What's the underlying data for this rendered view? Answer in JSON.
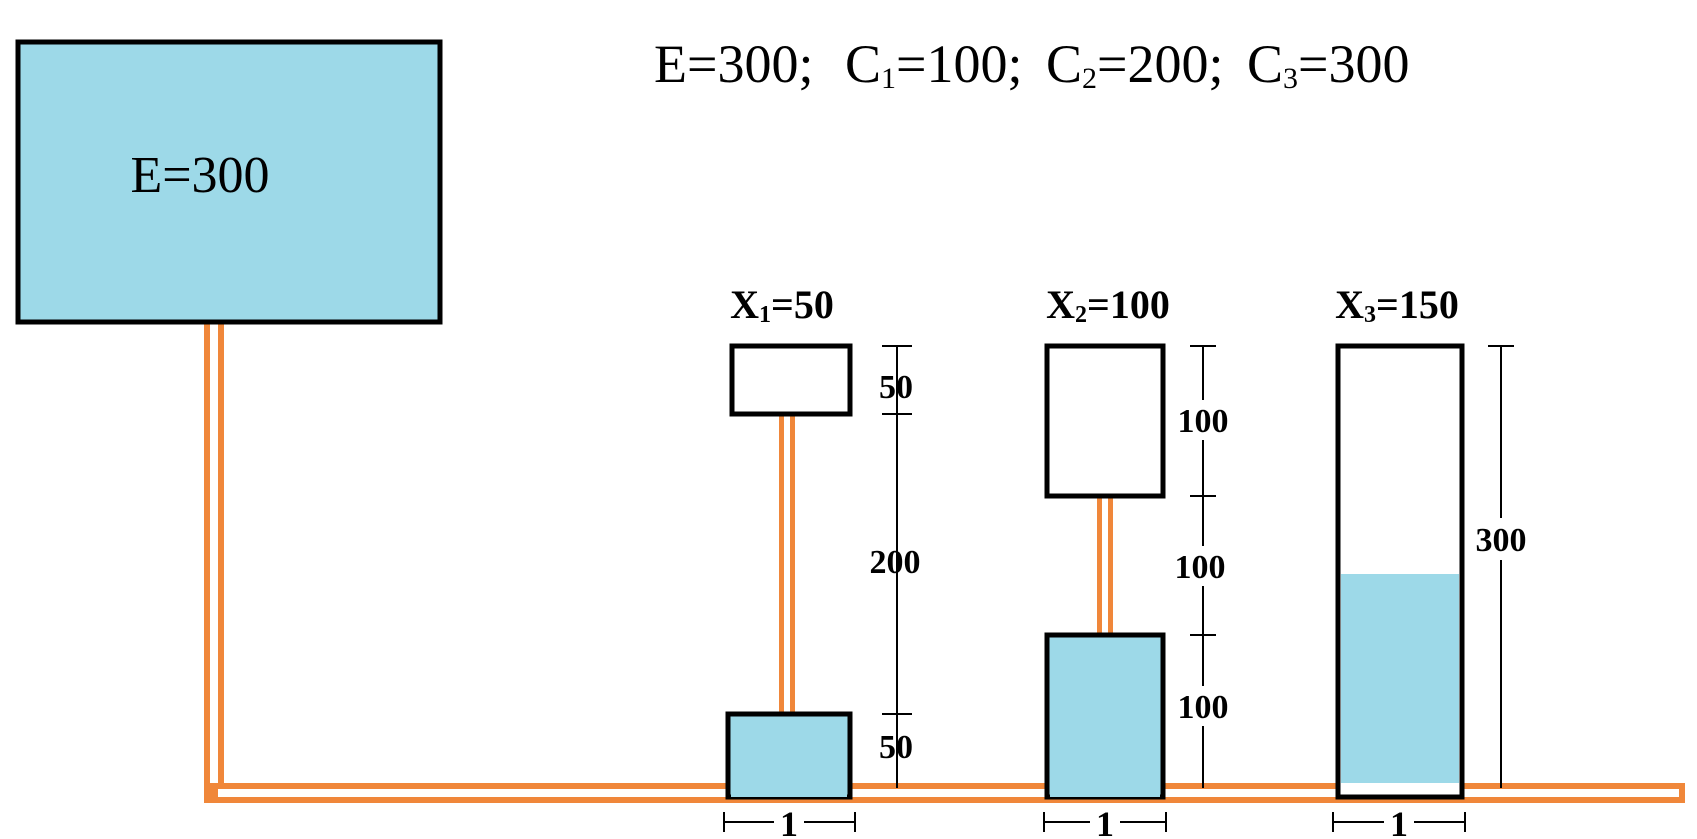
{
  "formula": {
    "E_part": "E=300;",
    "c1_base": "C",
    "c1_sub": "1",
    "c1_val": "=100;",
    "c2_base": "C",
    "c2_sub": "2",
    "c2_val": "=200;",
    "c3_base": "C",
    "c3_sub": "3",
    "c3_val": "=300"
  },
  "source": {
    "label": "E=300",
    "fill": "#9dd9e8"
  },
  "pipe_color": "#f0873a",
  "water_color": "#9dd9e8",
  "vessels": [
    {
      "label_base": "X",
      "label_sub": "1",
      "label_val": "=50",
      "dimensions": [
        "50",
        "200",
        "50"
      ],
      "width_label": "1"
    },
    {
      "label_base": "X",
      "label_sub": "2",
      "label_val": "=100",
      "dimensions": [
        "100",
        "100",
        "100"
      ],
      "width_label": "1"
    },
    {
      "label_base": "X",
      "label_sub": "3",
      "label_val": "=150",
      "dimensions": [
        "300"
      ],
      "width_label": "1"
    }
  ]
}
